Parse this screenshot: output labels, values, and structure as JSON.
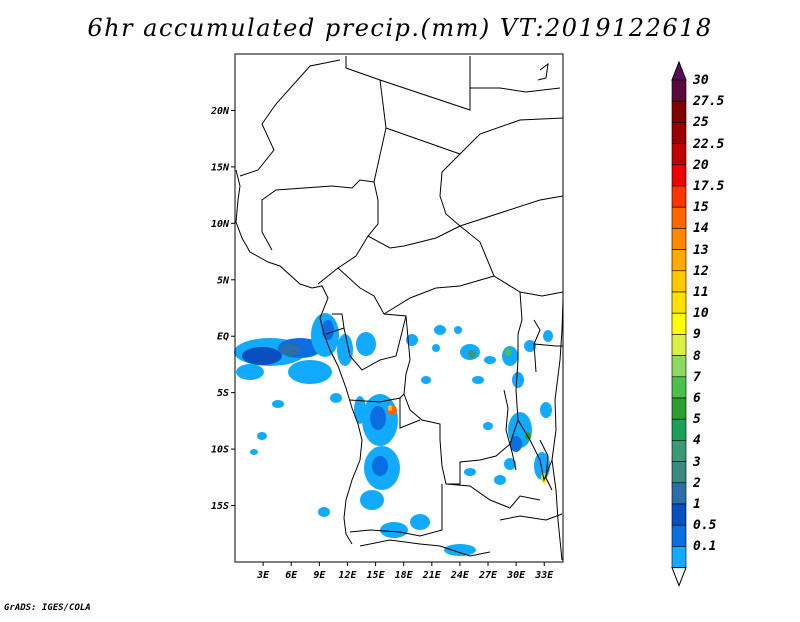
{
  "title": "6hr accumulated precip.(mm) VT:2019122618",
  "footer": "GrADS: IGES/COLA",
  "map": {
    "lat_ticks": [
      "20N",
      "15N",
      "10N",
      "5N",
      "EQ",
      "5S",
      "10S",
      "15S"
    ],
    "lon_ticks": [
      "3E",
      "6E",
      "9E",
      "12E",
      "15E",
      "18E",
      "21E",
      "24E",
      "27E",
      "30E",
      "33E"
    ],
    "lon_range": [
      0,
      35
    ],
    "lat_range": [
      -20,
      25
    ],
    "border_color": "#000000",
    "precip_colors": [
      "#11aaff",
      "#0a6ee0",
      "#0a4fc0",
      "#2c6fa8",
      "#3a8a80",
      "#3a9a78",
      "#1aa05a",
      "#2e9e2e",
      "#4cc04c",
      "#8cd860",
      "#d8f040",
      "#ffff00",
      "#ffe000",
      "#ffc800",
      "#ffaa00",
      "#ff8800",
      "#ff6600",
      "#ff3300",
      "#ee0000",
      "#c00000",
      "#990000",
      "#800000",
      "#5a0a3a"
    ]
  },
  "colorbar": {
    "labels": [
      "30",
      "27.5",
      "25",
      "22.5",
      "20",
      "17.5",
      "15",
      "14",
      "13",
      "12",
      "11",
      "10",
      "9",
      "8",
      "7",
      "6",
      "5",
      "4",
      "3",
      "2",
      "1",
      "0.5",
      "0.1"
    ],
    "colors": [
      "#5a0a3a",
      "#800000",
      "#990000",
      "#c00000",
      "#ee0000",
      "#ff3300",
      "#ff6600",
      "#ff8800",
      "#ffaa00",
      "#ffc800",
      "#ffe000",
      "#ffff00",
      "#d8f040",
      "#8cd860",
      "#4cc04c",
      "#2e9e2e",
      "#1aa05a",
      "#3a9a78",
      "#3a8a80",
      "#2c6fa8",
      "#0a4fc0",
      "#0a6ee0",
      "#11aaff"
    ],
    "top_cap_color": "#5a0a5a",
    "bottom_cap_color": "#ffffff"
  }
}
